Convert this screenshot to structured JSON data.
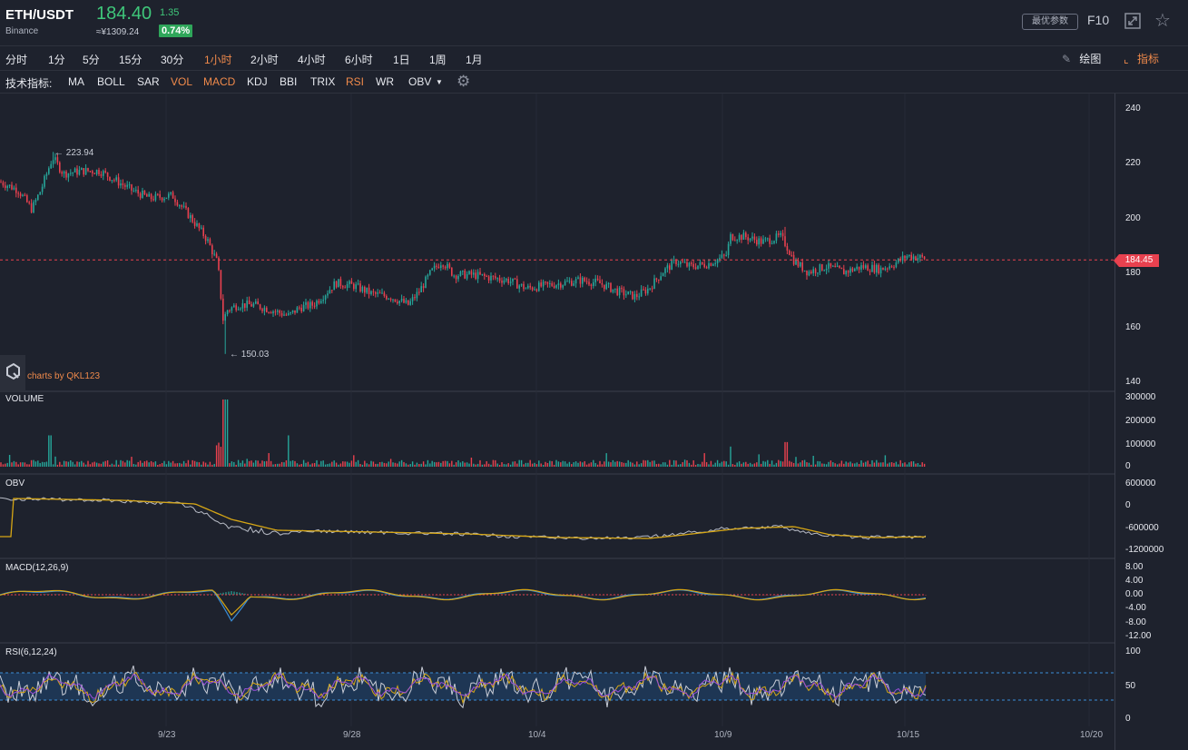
{
  "header": {
    "pair": "ETH/USDT",
    "exchange": "Binance",
    "price": "184.40",
    "change": "1.35",
    "cny": "≈¥1309.24",
    "pct": "0.74%",
    "best_params": "最优参数",
    "f10": "F10"
  },
  "timeframes": [
    {
      "label": "分时",
      "active": false
    },
    {
      "label": "1分",
      "active": false
    },
    {
      "label": "5分",
      "active": false
    },
    {
      "label": "15分",
      "active": false
    },
    {
      "label": "30分",
      "active": false
    },
    {
      "label": "1小时",
      "active": true
    },
    {
      "label": "2小时",
      "active": false
    },
    {
      "label": "4小时",
      "active": false
    },
    {
      "label": "6小时",
      "active": false
    },
    {
      "label": "1日",
      "active": false
    },
    {
      "label": "1周",
      "active": false
    },
    {
      "label": "1月",
      "active": false
    }
  ],
  "tools": {
    "draw": "绘图",
    "indicators": "指标"
  },
  "indicators": {
    "label": "技术指标:",
    "items": [
      {
        "label": "MA",
        "on": false
      },
      {
        "label": "BOLL",
        "on": false
      },
      {
        "label": "SAR",
        "on": false
      },
      {
        "label": "VOL",
        "on": true
      },
      {
        "label": "MACD",
        "on": true
      },
      {
        "label": "KDJ",
        "on": false
      },
      {
        "label": "BBI",
        "on": false
      },
      {
        "label": "TRIX",
        "on": false
      },
      {
        "label": "RSI",
        "on": true
      },
      {
        "label": "WR",
        "on": false
      },
      {
        "label": "OBV",
        "on": false
      }
    ]
  },
  "colors": {
    "up": "#26a69a",
    "down": "#e8414f",
    "accent": "#f08a4b",
    "bg": "#1e222d"
  },
  "main": {
    "high_label": "← 223.94",
    "low_label": "← 150.03",
    "brand": "charts by QKL123",
    "current_price_tag": "184.45",
    "current_price": 184.45,
    "y_ticks": [
      "240",
      "220",
      "200",
      "180",
      "160",
      "140"
    ]
  },
  "volume": {
    "label": "VOLUME",
    "y_ticks": [
      "300000",
      "200000",
      "100000",
      "0"
    ]
  },
  "obv": {
    "label": "OBV",
    "y_ticks": [
      "600000",
      "0",
      "-600000",
      "-1200000"
    ]
  },
  "macd": {
    "label": "MACD(12,26,9)",
    "y_ticks": [
      "8.00",
      "4.00",
      "0.00",
      "-4.00",
      "-8.00",
      "-12.00"
    ]
  },
  "rsi": {
    "label": "RSI(6,12,24)",
    "y_ticks": [
      "100",
      "50",
      "0"
    ]
  },
  "x_axis": [
    "9/23",
    "9/28",
    "10/4",
    "10/9",
    "10/15",
    "10/20"
  ]
}
